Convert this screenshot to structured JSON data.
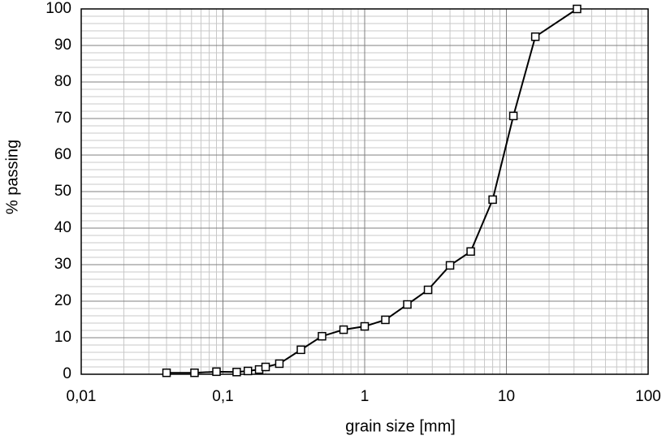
{
  "chart_data": {
    "type": "line",
    "x_label": "grain size [mm]",
    "y_label": "% passing",
    "x_log": true,
    "grid": true,
    "minor_grid": true,
    "color": "#000000",
    "marker": "square",
    "xlim": [
      0.01,
      100
    ],
    "ylim": [
      0,
      100
    ],
    "xticks": [
      {
        "value": 0.01,
        "label": "0,01"
      },
      {
        "value": 0.1,
        "label": "0,1"
      },
      1,
      10,
      100
    ],
    "yticks": [
      0,
      10,
      20,
      30,
      40,
      50,
      60,
      70,
      80,
      90,
      100
    ],
    "x": [
      0.04,
      0.063,
      0.09,
      0.125,
      0.15,
      0.18,
      0.2,
      0.25,
      0.355,
      0.5,
      0.71,
      1,
      1.4,
      2,
      2.8,
      4,
      5.6,
      8,
      11.2,
      16,
      31.5
    ],
    "values": [
      0.4,
      0.4,
      0.7,
      0.6,
      0.9,
      1.3,
      2,
      2.9,
      6.7,
      10.4,
      12.2,
      13.1,
      14.9,
      19.1,
      23.1,
      29.8,
      33.6,
      47.8,
      70.7,
      92.4,
      100
    ]
  }
}
